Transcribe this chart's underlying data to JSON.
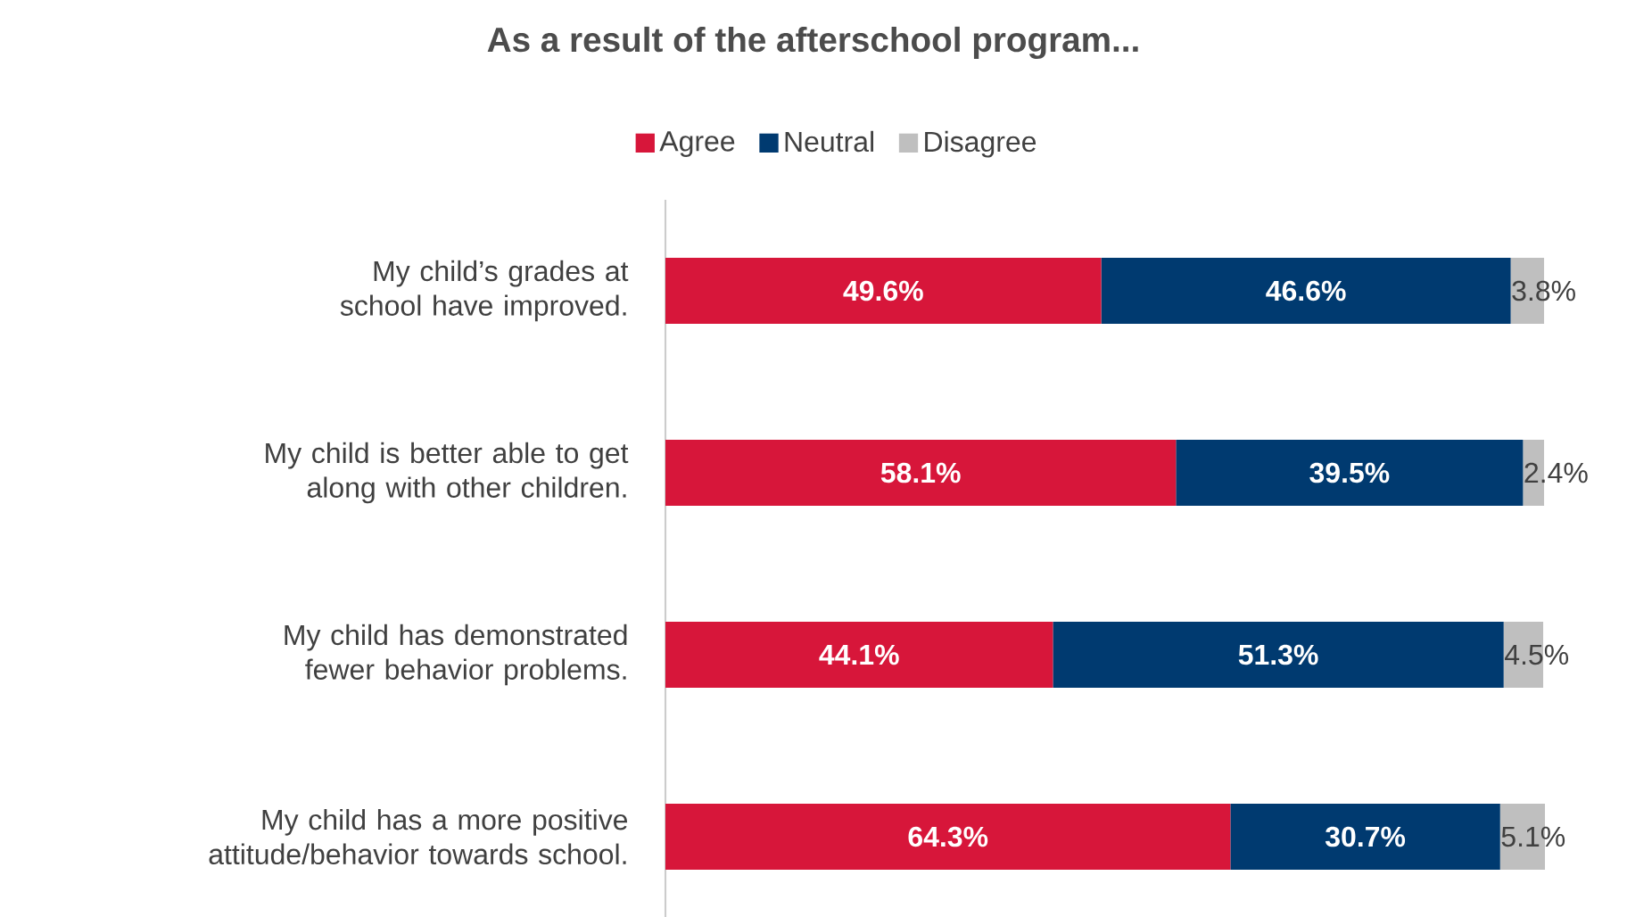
{
  "chart_data": {
    "type": "bar",
    "orientation": "horizontal",
    "stacked": true,
    "title": "As a result of the afterschool program...",
    "legend": "top",
    "categories": [
      "My child’s grades at school have improved.",
      "My child is better able to get along with other children.",
      "My child has demonstrated fewer behavior problems.",
      "My child has a more positive attitude/behavior towards school."
    ],
    "series": [
      {
        "name": "Agree",
        "color": "#d7163a",
        "values": [
          49.6,
          58.1,
          44.1,
          64.3
        ],
        "value_labels": [
          "49.6%",
          "58.1%",
          "44.1%",
          "64.3%"
        ]
      },
      {
        "name": "Neutral",
        "color": "#003a70",
        "values": [
          46.6,
          39.5,
          51.3,
          30.7
        ],
        "value_labels": [
          "46.6%",
          "39.5%",
          "51.3%",
          "30.7%"
        ]
      },
      {
        "name": "Disagree",
        "color": "#bfbfbf",
        "values": [
          3.8,
          2.4,
          4.5,
          5.1
        ],
        "value_labels": [
          "3.8%",
          "2.4%",
          "4.5%",
          "5.1%"
        ]
      }
    ]
  }
}
